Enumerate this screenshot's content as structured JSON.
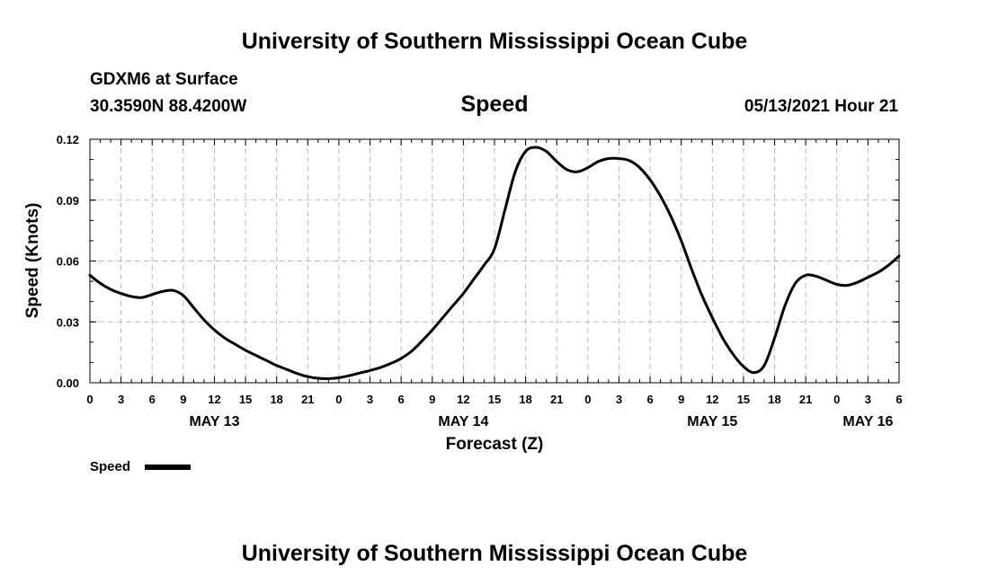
{
  "header": {
    "title": "University of Southern Mississippi Ocean Cube",
    "station": "GDXM6 at Surface",
    "coords": "30.3590N  88.4200W",
    "datetime": "05/13/2021 Hour 21"
  },
  "footer": {
    "title": "University of Southern Mississippi Ocean Cube"
  },
  "chart_data": {
    "type": "line",
    "title": "Speed",
    "xlabel": "Forecast (Z)",
    "ylabel": "Speed (Knots)",
    "ylim": [
      0,
      0.12
    ],
    "xlim_hours": [
      0,
      78
    ],
    "y_ticks": [
      0.0,
      0.03,
      0.06,
      0.09,
      0.12
    ],
    "y_tick_labels": [
      "0.00",
      "0.03",
      "0.06",
      "0.09",
      "0.12"
    ],
    "x_tick_labels": [
      "0",
      "3",
      "6",
      "9",
      "12",
      "15",
      "18",
      "21",
      "0",
      "3",
      "6",
      "9",
      "12",
      "15",
      "18",
      "21",
      "0",
      "3",
      "6",
      "9",
      "12",
      "15",
      "18",
      "21",
      "0",
      "3",
      "6"
    ],
    "date_labels": [
      {
        "label": "MAY 13",
        "hour": 12
      },
      {
        "label": "MAY 14",
        "hour": 36
      },
      {
        "label": "MAY 15",
        "hour": 60
      },
      {
        "label": "MAY 16",
        "hour": 75
      }
    ],
    "grid": true,
    "legend": {
      "label": "Speed",
      "position": "bottom-left"
    },
    "series": [
      {
        "name": "Speed",
        "color": "#000000",
        "hours": [
          0,
          1,
          2,
          3,
          4,
          5,
          6,
          7,
          8,
          9,
          10,
          11,
          12,
          13,
          14,
          15,
          16,
          17,
          18,
          19,
          20,
          21,
          22,
          23,
          24,
          25,
          26,
          27,
          28,
          29,
          30,
          31,
          32,
          33,
          34,
          35,
          36,
          37,
          38,
          39,
          40,
          41,
          42,
          43,
          44,
          45,
          46,
          47,
          48,
          49,
          50,
          51,
          52,
          53,
          54,
          55,
          56,
          57,
          58,
          59,
          60,
          61,
          62,
          63,
          64,
          65,
          66,
          67,
          68,
          69,
          70,
          71,
          72,
          73,
          74,
          75,
          76,
          77,
          78
        ],
        "values": [
          0.053,
          0.049,
          0.046,
          0.044,
          0.0425,
          0.042,
          0.0435,
          0.045,
          0.0455,
          0.043,
          0.037,
          0.031,
          0.026,
          0.022,
          0.019,
          0.016,
          0.0135,
          0.011,
          0.0085,
          0.0065,
          0.0045,
          0.003,
          0.0022,
          0.002,
          0.0025,
          0.0035,
          0.0048,
          0.006,
          0.0075,
          0.0095,
          0.012,
          0.0155,
          0.0205,
          0.026,
          0.032,
          0.038,
          0.044,
          0.051,
          0.058,
          0.066,
          0.085,
          0.104,
          0.114,
          0.116,
          0.114,
          0.109,
          0.105,
          0.104,
          0.106,
          0.109,
          0.1105,
          0.1105,
          0.1095,
          0.106,
          0.1,
          0.092,
          0.082,
          0.07,
          0.056,
          0.043,
          0.032,
          0.022,
          0.014,
          0.008,
          0.005,
          0.0085,
          0.022,
          0.038,
          0.049,
          0.053,
          0.0525,
          0.0505,
          0.0485,
          0.048,
          0.0495,
          0.052,
          0.0545,
          0.058,
          0.0625
        ]
      }
    ]
  }
}
